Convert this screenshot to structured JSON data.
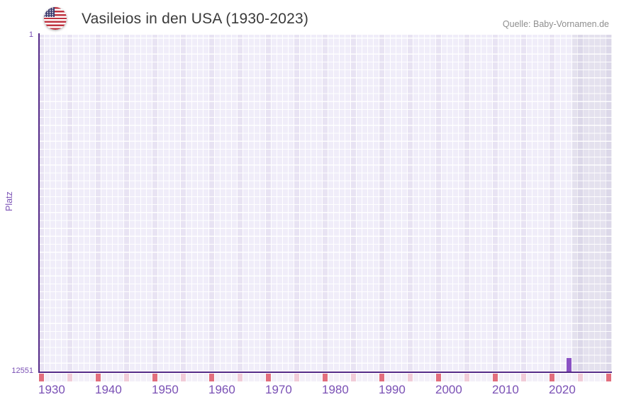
{
  "header": {
    "flag_icon": "us-flag-icon",
    "title": "Vasileios in den USA (1930-2023)",
    "source": "Quelle: Baby-Vornamen.de"
  },
  "chart_data": {
    "type": "bar",
    "title": "Vasileios in den USA (1930-2023)",
    "xlabel": "",
    "ylabel": "Platz",
    "y_axis": {
      "top_tick": "1",
      "bottom_tick": "12551",
      "min": 1,
      "max": 12551,
      "direction": "rank-1-at-top"
    },
    "x_axis": {
      "start_year": 1930,
      "end_year": 2030,
      "data_end_year": 2023,
      "tick_years": [
        1930,
        1940,
        1950,
        1960,
        1970,
        1980,
        1990,
        2000,
        2010,
        2020
      ]
    },
    "series": [
      {
        "name": "Vasileios",
        "points": [
          {
            "year": 2023,
            "rank": 12050
          }
        ]
      }
    ],
    "legend": "none",
    "grid": "checkered-yearly-columns, 5-year columns emphasized, years after 2023 shaded gray"
  },
  "colors": {
    "bar": "#8a52c4",
    "axis": "#542a87",
    "tick": "#7a50b5",
    "cell": "#f0edf9",
    "cell5": "#e8e3f3",
    "cellf": "#e4e1ee",
    "cellf5": "#dcd8e9",
    "gapf": "#f2f1f5",
    "decade": "#e26e7d",
    "half": "#f1ccd8",
    "plain": "#f3f0f8",
    "title": "#3a3a3a",
    "source": "#8f8f8f"
  }
}
